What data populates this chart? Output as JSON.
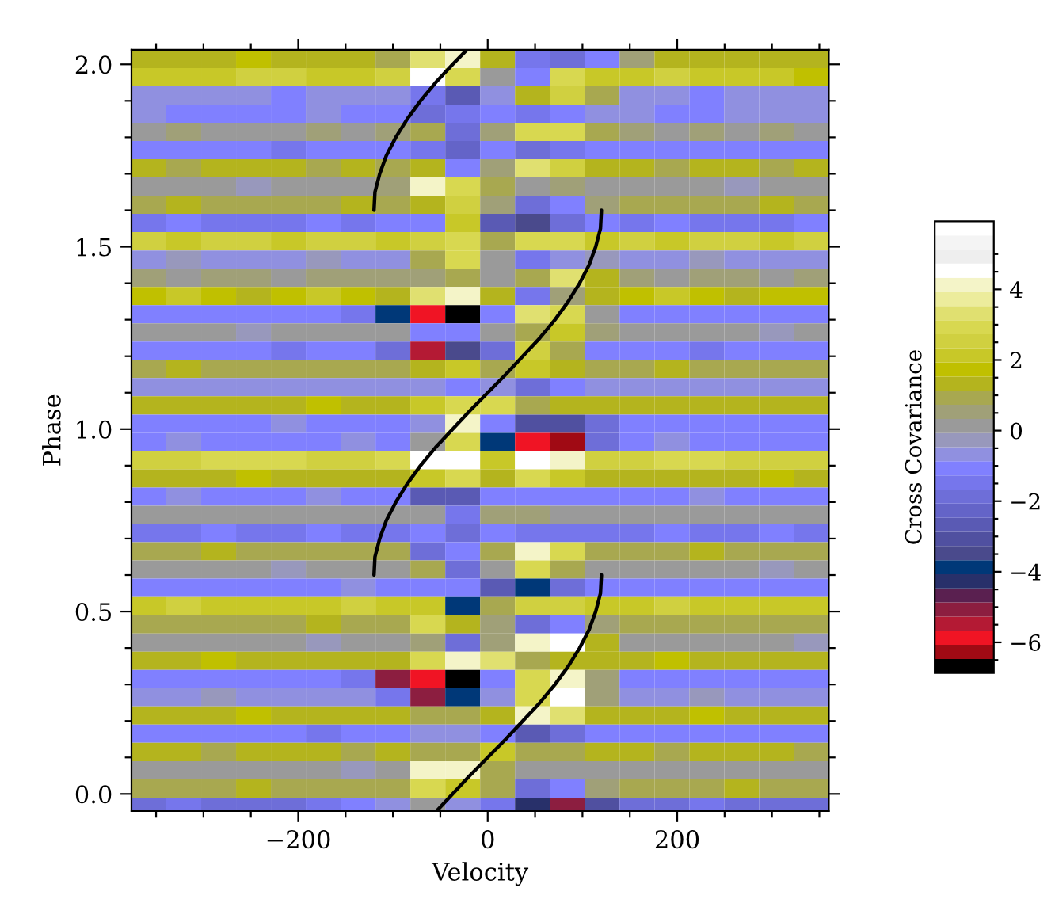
{
  "chart_data": {
    "type": "heatmap",
    "xlabel": "Velocity",
    "ylabel": "Phase",
    "clabel": "Cross Covariance",
    "x": [
      -357.6,
      -320.8,
      -284,
      -247.2,
      -210.4,
      -173.6,
      -136.8,
      -100,
      -63.2,
      -26.4,
      10.4,
      47.2,
      84,
      120.8,
      157.6,
      194.4,
      231.2,
      268,
      304.8,
      341.6
    ],
    "y": [
      2.015,
      1.965,
      1.915,
      1.865,
      1.815,
      1.765,
      1.715,
      1.665,
      1.615,
      1.565,
      1.515,
      1.465,
      1.415,
      1.365,
      1.315,
      1.265,
      1.215,
      1.165,
      1.115,
      1.065,
      1.015,
      0.965,
      0.915,
      0.865,
      0.815,
      0.765,
      0.715,
      0.665,
      0.615,
      0.565,
      0.515,
      0.465,
      0.415,
      0.365,
      0.315,
      0.265,
      0.215,
      0.165,
      0.115,
      0.065,
      0.015,
      -0.035
    ],
    "cells": [
      [
        1.5,
        1.2,
        1.5,
        1.6,
        1.4,
        1.5,
        1.3,
        1.0,
        3.5,
        4.0,
        1.5,
        -1.5,
        -1.8,
        -1.0,
        0.5,
        1.5,
        1.5,
        1.4,
        1.5,
        1.3
      ],
      [
        2,
        2,
        2.2,
        2.5,
        2.5,
        2.2,
        2,
        2.5,
        4.5,
        3,
        0,
        -1,
        3,
        2,
        2,
        2.5,
        2.2,
        2,
        2,
        1.8
      ],
      [
        -0.8,
        -0.8,
        -0.5,
        -0.8,
        -1,
        -0.8,
        -0.5,
        -0.8,
        -1.5,
        -2.5,
        -0.5,
        1.5,
        2.5,
        1,
        -0.5,
        -0.8,
        -1,
        -0.8,
        -0.8,
        -0.5
      ],
      [
        -0.5,
        -1,
        -1.2,
        -1,
        -1,
        -0.8,
        -1,
        -1,
        -2,
        -1.5,
        -1,
        -1.5,
        -1,
        -0.8,
        -0.8,
        -1,
        -1,
        -0.8,
        -0.5,
        -0.8
      ],
      [
        0.3,
        0.5,
        0.3,
        0,
        0.3,
        0.5,
        0.3,
        0.5,
        1,
        -2,
        0.5,
        3,
        3,
        1,
        0.5,
        0.3,
        0.5,
        0.3,
        0.5,
        0.3
      ],
      [
        -1.2,
        -1.2,
        -1,
        -1.2,
        -1.5,
        -1.2,
        -1,
        -1.2,
        -1.5,
        -2.2,
        -1,
        -1.8,
        -1.5,
        -1.2,
        -1,
        -1.2,
        -1.2,
        -1,
        -1.2,
        -1.2
      ],
      [
        1.2,
        1,
        1.2,
        1.5,
        1.2,
        1,
        1.2,
        1,
        1.5,
        -1,
        0.5,
        3.5,
        2.5,
        1.5,
        1.2,
        1,
        1.2,
        1.2,
        1,
        1.2
      ],
      [
        0,
        0.3,
        0,
        -0.3,
        0,
        0.3,
        0,
        0.5,
        4,
        3,
        1,
        0,
        0.5,
        0,
        0,
        0.3,
        0,
        -0.3,
        0,
        0
      ],
      [
        1,
        1.2,
        1,
        0.8,
        1,
        1,
        1.2,
        1,
        1.5,
        2.5,
        0.5,
        -2,
        -1,
        0.5,
        1,
        1,
        0.8,
        1,
        1.2,
        1
      ],
      [
        -1.3,
        -1.2,
        -1.3,
        -1.5,
        -1.3,
        -1,
        -1.3,
        -1.2,
        -1,
        2,
        -2.5,
        -3.5,
        -2,
        -1,
        -1.3,
        -1.2,
        -1.3,
        -1.5,
        -1.3,
        -1.2
      ],
      [
        2.5,
        2.2,
        2.5,
        2.5,
        2.2,
        2.5,
        2.5,
        2.2,
        2.5,
        3,
        1,
        3,
        3,
        2,
        2.5,
        2.2,
        2.5,
        2.5,
        2.2,
        2.5
      ],
      [
        -0.5,
        -0.3,
        -0.5,
        -0.8,
        -0.5,
        -0.3,
        -0.5,
        -0.5,
        1,
        3,
        0,
        -1.5,
        -0.5,
        -0.3,
        -0.5,
        -0.5,
        -0.3,
        -0.5,
        -0.5,
        -0.5
      ],
      [
        0.5,
        0.3,
        0.5,
        0.5,
        0.3,
        0.5,
        0.5,
        0.5,
        0.5,
        1,
        0,
        1,
        3.5,
        1.5,
        0.5,
        0.3,
        0.5,
        0.5,
        0.3,
        0.5
      ],
      [
        1.8,
        2,
        1.8,
        1.5,
        1.8,
        2,
        1.8,
        1.5,
        3.5,
        4,
        1.5,
        -1.5,
        0.5,
        1.5,
        1.8,
        2,
        1.8,
        1.5,
        1.8,
        1.8
      ],
      [
        -1,
        -1.2,
        -1,
        -1.2,
        -1,
        -1,
        -1.5,
        -4,
        -6,
        -6.5,
        -1,
        3.5,
        3,
        0,
        -1,
        -1.2,
        -1,
        -1,
        -1.2,
        -1
      ],
      [
        0,
        0.2,
        0,
        -0.2,
        0,
        0.2,
        0,
        0,
        -1,
        -1,
        0,
        1,
        2,
        0.5,
        0,
        0.2,
        0,
        0,
        -0.2,
        0
      ],
      [
        -1.2,
        -1,
        -1.2,
        -1.2,
        -1.5,
        -1.2,
        -1.2,
        -2,
        -5.5,
        -3.5,
        -2,
        2.5,
        1,
        -1,
        -1.2,
        -1.2,
        -1.5,
        -1.2,
        -1,
        -1.2
      ],
      [
        1,
        1.2,
        1,
        1,
        0.8,
        1,
        1,
        1,
        1.5,
        2,
        1,
        2,
        1.5,
        1,
        1,
        1.2,
        1,
        1,
        0.8,
        1
      ],
      [
        -0.6,
        -0.5,
        -0.6,
        -0.8,
        -0.6,
        -0.5,
        -0.6,
        -0.6,
        -0.5,
        -1,
        -0.5,
        -2,
        -1,
        -0.5,
        -0.6,
        -0.8,
        -0.6,
        -0.5,
        -0.6,
        -0.6
      ],
      [
        1.5,
        1.5,
        1.2,
        1.5,
        1.5,
        1.8,
        1.5,
        1.5,
        2,
        3,
        3,
        1,
        1.5,
        1.5,
        1.5,
        1.2,
        1.5,
        1.5,
        1.5,
        1.5
      ],
      [
        -1,
        -1,
        -1.2,
        -1,
        -0.8,
        -1,
        -1,
        -1,
        -0.5,
        4,
        -1,
        -3,
        -3,
        -2,
        -1,
        -1,
        -1.2,
        -1,
        -1,
        -1
      ],
      [
        -1,
        -0.8,
        -1,
        -1,
        -1.2,
        -1,
        -0.8,
        -1,
        0,
        3,
        -4,
        -6,
        -6.2,
        -2,
        -1,
        -0.8,
        -1,
        -1,
        -1.2,
        -1
      ],
      [
        2.5,
        2.5,
        2.8,
        3,
        3,
        2.5,
        2.5,
        3,
        4.5,
        4.5,
        2,
        4.5,
        4,
        2.5,
        2.5,
        3,
        2.8,
        2.5,
        2.5,
        2.5
      ],
      [
        1.5,
        1.5,
        1.5,
        1.8,
        1.5,
        1.5,
        1.2,
        1.5,
        2,
        3,
        1.5,
        3,
        2,
        1.5,
        1.5,
        1.5,
        1.5,
        1.5,
        1.8,
        1.5
      ],
      [
        -1,
        -0.8,
        -1,
        -1,
        -1,
        -0.8,
        -1,
        -1,
        -2.5,
        -2.5,
        -1,
        -1,
        -1,
        -1,
        -1,
        -1,
        -0.8,
        -1,
        -1,
        -1
      ],
      [
        0.2,
        0,
        0.2,
        0.3,
        0.2,
        0,
        0.2,
        0.2,
        0,
        -1.5,
        0.5,
        0.5,
        0,
        0.2,
        0.2,
        0,
        0.2,
        0.3,
        0.2,
        0.2
      ],
      [
        -1.5,
        -1.5,
        -1.2,
        -1.5,
        -1.5,
        -1.2,
        -1.5,
        -1.5,
        -1,
        -2,
        -1,
        -1.5,
        -1.5,
        -1.5,
        -1.5,
        -1.2,
        -1.5,
        -1.5,
        -1.2,
        -1.5
      ],
      [
        1,
        1,
        1.2,
        1,
        1,
        0.8,
        1,
        1,
        -2,
        -1,
        1,
        4,
        3,
        1,
        1,
        1,
        1.2,
        1,
        1,
        1
      ],
      [
        0,
        0.2,
        0,
        0,
        -0.2,
        0,
        0,
        0,
        1,
        -2,
        0,
        3,
        1,
        0,
        0,
        0.2,
        0,
        0,
        -0.2,
        0
      ],
      [
        -1,
        -1,
        -1.2,
        -1,
        -1,
        -1,
        -0.8,
        -1,
        -1,
        -1,
        -2.5,
        -4,
        -2,
        -1,
        -1,
        -1,
        -1.2,
        -1,
        -1,
        -1
      ],
      [
        2.2,
        2.5,
        2.2,
        2.2,
        2,
        2.2,
        2.5,
        2.2,
        2,
        -4,
        1,
        2.5,
        2.5,
        2,
        2.2,
        2.5,
        2.2,
        2.2,
        2,
        2.2
      ],
      [
        1,
        1,
        0.8,
        1,
        1,
        1.2,
        1,
        1,
        3,
        1.5,
        0.5,
        -2,
        -1,
        0.5,
        1,
        1,
        0.8,
        1,
        1,
        1
      ],
      [
        0,
        0,
        0.2,
        0,
        0,
        -0.2,
        0,
        0,
        0.5,
        -2,
        0.5,
        4,
        4.5,
        1.5,
        0,
        0,
        0.2,
        0,
        0,
        -0.2
      ],
      [
        1.5,
        1.5,
        1.8,
        1.5,
        1.5,
        1.5,
        1.2,
        1.5,
        3,
        4,
        3.5,
        1,
        1.5,
        1.5,
        1.5,
        1.8,
        1.5,
        1.5,
        1.5,
        1.5
      ],
      [
        -1,
        -1,
        -1.2,
        -1,
        -1,
        -1,
        -1.5,
        -5,
        -6,
        -6.5,
        -1,
        3,
        4,
        0.5,
        -1,
        -1,
        -1.2,
        -1,
        -1,
        -1
      ],
      [
        -0.5,
        -0.5,
        -0.3,
        -0.5,
        -0.8,
        -0.5,
        -0.5,
        -1.5,
        -5,
        -4,
        -0.5,
        3,
        4.5,
        0.5,
        -0.5,
        -0.5,
        -0.3,
        -0.5,
        -0.5,
        -0.5
      ],
      [
        1.5,
        1.5,
        1.5,
        1.8,
        1.5,
        1.5,
        1.2,
        1.5,
        1,
        1,
        1.5,
        4,
        3.5,
        1.5,
        1.5,
        1.5,
        1.8,
        1.5,
        1.5,
        1.5
      ],
      [
        -1.2,
        -1.2,
        -1,
        -1.2,
        -1.2,
        -1.5,
        -1.2,
        -1,
        -0.5,
        -0.5,
        -1,
        -2.5,
        -2,
        -1,
        -1.2,
        -1.2,
        -1,
        -1.2,
        -1.2,
        -1.2
      ],
      [
        1.2,
        1.2,
        1,
        1.2,
        1.2,
        1.2,
        1,
        1.2,
        1,
        1,
        2,
        1,
        1,
        1.2,
        1.2,
        1,
        1.2,
        1.2,
        1.2,
        1
      ],
      [
        0,
        0,
        0.2,
        0,
        0,
        0,
        -0.2,
        0,
        4,
        4,
        1,
        0,
        0,
        0,
        0,
        0.2,
        0,
        0,
        0,
        0
      ],
      [
        1,
        1,
        1,
        1.2,
        1,
        0.8,
        1,
        1,
        3,
        2,
        1,
        -2,
        -1,
        0.5,
        1,
        1,
        1,
        1.2,
        1,
        1
      ],
      [
        -1.8,
        -1.5,
        -1.8,
        -2,
        -1.8,
        -1.5,
        -1.2,
        -0.5,
        0,
        -0.5,
        -1.5,
        -4.2,
        -5,
        -3,
        -2,
        -1.8,
        -1.5,
        -1.8,
        -2,
        -1.8
      ]
    ],
    "clim": [
      -6.87,
      5.93
    ],
    "cticks": [
      {
        "value": -6.5,
        "label": null
      },
      {
        "value": -6,
        "label": "−6"
      },
      {
        "value": -5.5,
        "label": null
      },
      {
        "value": -5,
        "label": null
      },
      {
        "value": -4.5,
        "label": null
      },
      {
        "value": -4,
        "label": "−4"
      },
      {
        "value": -3.5,
        "label": null
      },
      {
        "value": -3,
        "label": null
      },
      {
        "value": -2.5,
        "label": null
      },
      {
        "value": -2,
        "label": "−2"
      },
      {
        "value": -1.5,
        "label": null
      },
      {
        "value": -1,
        "label": null
      },
      {
        "value": -0.5,
        "label": null
      },
      0,
      {
        "value": 0.5,
        "label": null
      },
      {
        "value": 1,
        "label": null
      },
      {
        "value": 1.5,
        "label": null
      },
      2,
      {
        "value": 2.5,
        "label": null
      },
      {
        "value": 3,
        "label": null
      },
      {
        "value": 3.5,
        "label": null
      },
      4,
      {
        "value": 4.5,
        "label": null
      },
      {
        "value": 5,
        "label": null
      }
    ],
    "series": [
      {
        "type": "line",
        "color": "#000000",
        "x": [
          -54,
          -37,
          -19,
          0,
          19,
          37,
          55,
          71,
          85,
          97,
          107,
          114,
          119,
          120
        ],
        "values": [
          -0.047,
          0,
          0.05,
          0.1,
          0.15,
          0.2,
          0.25,
          0.3,
          0.35,
          0.4,
          0.45,
          0.5,
          0.55,
          0.6
        ]
      },
      {
        "type": "line",
        "color": "#000000",
        "x": [
          -120,
          -119,
          -114,
          -107,
          -97,
          -85,
          -71,
          -55,
          -37,
          -19,
          0,
          19,
          37,
          55,
          71,
          85,
          97,
          107,
          114,
          119,
          120
        ],
        "values": [
          0.6,
          0.65,
          0.7,
          0.75,
          0.8,
          0.85,
          0.9,
          0.95,
          1.0,
          1.05,
          1.1,
          1.15,
          1.2,
          1.25,
          1.3,
          1.35,
          1.4,
          1.45,
          1.5,
          1.55,
          1.6
        ]
      },
      {
        "type": "line",
        "color": "#000000",
        "x": [
          -120,
          -119,
          -114,
          -107,
          -97,
          -85,
          -71,
          -55,
          -37,
          -22
        ],
        "values": [
          1.6,
          1.65,
          1.7,
          1.75,
          1.8,
          1.85,
          1.9,
          1.95,
          2.0,
          2.04
        ]
      }
    ],
    "xlim": [
      -376,
      360
    ],
    "xticks": [
      {
        "value": -350,
        "label": null
      },
      {
        "value": -300,
        "label": null
      },
      {
        "value": -250,
        "label": null
      },
      {
        "value": -200,
        "label": "−200"
      },
      {
        "value": -150,
        "label": null
      },
      {
        "value": -100,
        "label": null
      },
      {
        "value": -50,
        "label": null
      },
      0,
      {
        "value": 50,
        "label": null
      },
      {
        "value": 100,
        "label": null
      },
      {
        "value": 150,
        "label": null
      },
      {
        "value": 200,
        "label": "200"
      },
      {
        "value": 250,
        "label": null
      },
      {
        "value": 300,
        "label": null
      },
      {
        "value": 350,
        "label": null
      }
    ],
    "ylim": [
      -0.047,
      2.04
    ],
    "yticks": [
      {
        "value": 0,
        "label": "0.0"
      },
      {
        "value": 0.1,
        "label": null
      },
      {
        "value": 0.2,
        "label": null
      },
      {
        "value": 0.3,
        "label": null
      },
      {
        "value": 0.4,
        "label": null
      },
      {
        "value": 0.5,
        "label": "0.5"
      },
      {
        "value": 0.6,
        "label": null
      },
      {
        "value": 0.7,
        "label": null
      },
      {
        "value": 0.8,
        "label": null
      },
      {
        "value": 0.9,
        "label": null
      },
      {
        "value": 1.0,
        "label": "1.0"
      },
      {
        "value": 1.1,
        "label": null
      },
      {
        "value": 1.2,
        "label": null
      },
      {
        "value": 1.3,
        "label": null
      },
      {
        "value": 1.4,
        "label": null
      },
      {
        "value": 1.5,
        "label": "1.5"
      },
      {
        "value": 1.6,
        "label": null
      },
      {
        "value": 1.7,
        "label": null
      },
      {
        "value": 1.8,
        "label": null
      },
      {
        "value": 1.9,
        "label": null
      },
      {
        "value": 2.0,
        "label": "2.0"
      }
    ]
  }
}
